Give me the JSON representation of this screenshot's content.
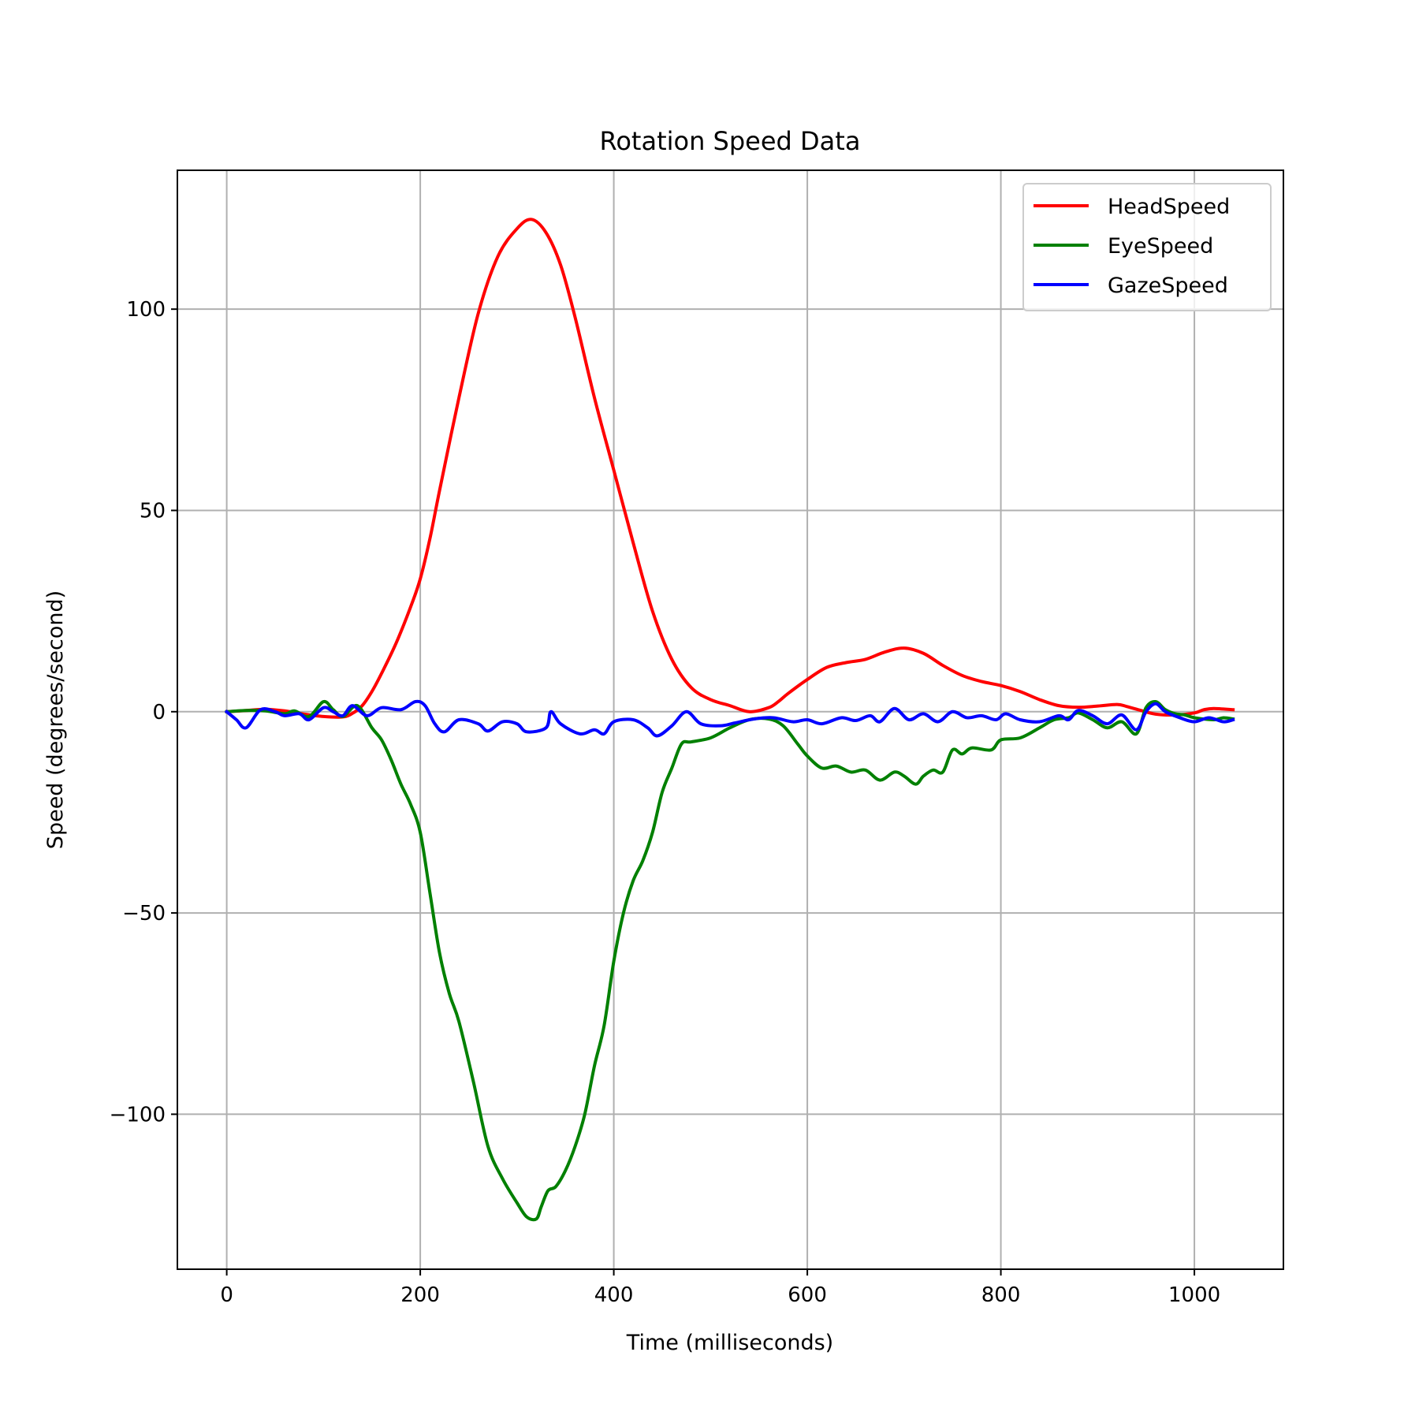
{
  "chart_data": {
    "type": "line",
    "title": "Rotation Speed Data",
    "xlabel": "Time (milliseconds)",
    "ylabel": "Speed (degrees/second)",
    "xlim": [
      -51,
      1092
    ],
    "ylim": [
      -138.5,
      134.5
    ],
    "xticks": [
      0,
      200,
      400,
      600,
      800,
      1000
    ],
    "yticks": [
      -100,
      -50,
      0,
      50,
      100
    ],
    "xtick_labels": [
      "0",
      "200",
      "400",
      "600",
      "800",
      "1000"
    ],
    "ytick_labels": [
      "−100",
      "−50",
      "0",
      "50",
      "100"
    ],
    "grid": true,
    "legend_position": "top-right",
    "series": [
      {
        "name": "HeadSpeed",
        "color": "#ff0000",
        "points": [
          [
            0,
            0
          ],
          [
            20,
            0.3
          ],
          [
            40,
            0.6
          ],
          [
            60,
            0.2
          ],
          [
            80,
            -0.6
          ],
          [
            100,
            -1.2
          ],
          [
            120,
            -1.3
          ],
          [
            130,
            -0.4
          ],
          [
            140,
            1.5
          ],
          [
            150,
            5
          ],
          [
            160,
            9.5
          ],
          [
            175,
            17
          ],
          [
            190,
            26
          ],
          [
            200,
            33
          ],
          [
            210,
            43
          ],
          [
            220,
            55
          ],
          [
            240,
            78
          ],
          [
            260,
            99
          ],
          [
            280,
            113
          ],
          [
            300,
            120
          ],
          [
            315,
            122.3
          ],
          [
            330,
            119
          ],
          [
            345,
            111
          ],
          [
            360,
            98
          ],
          [
            380,
            78
          ],
          [
            400,
            60
          ],
          [
            420,
            42
          ],
          [
            440,
            25
          ],
          [
            460,
            13
          ],
          [
            480,
            6
          ],
          [
            500,
            3
          ],
          [
            520,
            1.5
          ],
          [
            540,
            0
          ],
          [
            560,
            1
          ],
          [
            570,
            2.5
          ],
          [
            580,
            4.5
          ],
          [
            600,
            8
          ],
          [
            620,
            11
          ],
          [
            640,
            12.2
          ],
          [
            660,
            13
          ],
          [
            680,
            14.8
          ],
          [
            700,
            15.8
          ],
          [
            720,
            14.5
          ],
          [
            740,
            11.5
          ],
          [
            760,
            9
          ],
          [
            780,
            7.5
          ],
          [
            800,
            6.5
          ],
          [
            820,
            5
          ],
          [
            840,
            3
          ],
          [
            860,
            1.5
          ],
          [
            880,
            1.1
          ],
          [
            900,
            1.4
          ],
          [
            920,
            1.8
          ],
          [
            930,
            1.3
          ],
          [
            945,
            0.3
          ],
          [
            960,
            -0.6
          ],
          [
            980,
            -0.8
          ],
          [
            1000,
            -0.3
          ],
          [
            1010,
            0.5
          ],
          [
            1020,
            0.8
          ],
          [
            1040,
            0.5
          ]
        ]
      },
      {
        "name": "EyeSpeed",
        "color": "#008000",
        "points": [
          [
            0,
            0
          ],
          [
            20,
            0.3
          ],
          [
            40,
            0.2
          ],
          [
            60,
            -0.5
          ],
          [
            70,
            0.2
          ],
          [
            85,
            -1.2
          ],
          [
            100,
            2.5
          ],
          [
            110,
            0.5
          ],
          [
            120,
            -1.2
          ],
          [
            135,
            1.5
          ],
          [
            150,
            -4
          ],
          [
            160,
            -7
          ],
          [
            170,
            -12
          ],
          [
            180,
            -18
          ],
          [
            190,
            -23
          ],
          [
            200,
            -30
          ],
          [
            210,
            -45
          ],
          [
            220,
            -60
          ],
          [
            230,
            -70
          ],
          [
            240,
            -77
          ],
          [
            255,
            -92
          ],
          [
            270,
            -108
          ],
          [
            285,
            -116
          ],
          [
            300,
            -122
          ],
          [
            310,
            -125.5
          ],
          [
            320,
            -126
          ],
          [
            325,
            -123
          ],
          [
            332,
            -119
          ],
          [
            340,
            -118
          ],
          [
            350,
            -114
          ],
          [
            360,
            -108
          ],
          [
            370,
            -100
          ],
          [
            380,
            -88
          ],
          [
            390,
            -78
          ],
          [
            400,
            -62
          ],
          [
            410,
            -50
          ],
          [
            420,
            -42
          ],
          [
            430,
            -37
          ],
          [
            440,
            -30
          ],
          [
            450,
            -20
          ],
          [
            460,
            -14
          ],
          [
            470,
            -8
          ],
          [
            480,
            -7.5
          ],
          [
            500,
            -6.5
          ],
          [
            520,
            -4
          ],
          [
            540,
            -2
          ],
          [
            560,
            -1.8
          ],
          [
            575,
            -3.5
          ],
          [
            590,
            -8
          ],
          [
            600,
            -11
          ],
          [
            615,
            -14
          ],
          [
            630,
            -13.5
          ],
          [
            645,
            -15
          ],
          [
            660,
            -14.5
          ],
          [
            675,
            -17
          ],
          [
            690,
            -15
          ],
          [
            700,
            -16
          ],
          [
            712,
            -18
          ],
          [
            720,
            -16
          ],
          [
            730,
            -14.5
          ],
          [
            740,
            -15
          ],
          [
            750,
            -9.5
          ],
          [
            760,
            -10.5
          ],
          [
            770,
            -9
          ],
          [
            790,
            -9.5
          ],
          [
            800,
            -7
          ],
          [
            820,
            -6.5
          ],
          [
            840,
            -4
          ],
          [
            855,
            -2
          ],
          [
            870,
            -1.5
          ],
          [
            880,
            -0.3
          ],
          [
            895,
            -2
          ],
          [
            910,
            -4
          ],
          [
            925,
            -2.5
          ],
          [
            940,
            -5.5
          ],
          [
            950,
            1
          ],
          [
            960,
            2.5
          ],
          [
            970,
            0.5
          ],
          [
            980,
            -0.5
          ],
          [
            990,
            -0.8
          ],
          [
            1000,
            -1.5
          ],
          [
            1020,
            -2
          ],
          [
            1030,
            -1.5
          ],
          [
            1040,
            -1.8
          ]
        ]
      },
      {
        "name": "GazeSpeed",
        "color": "#0000ff",
        "points": [
          [
            0,
            0
          ],
          [
            10,
            -2
          ],
          [
            20,
            -4
          ],
          [
            35,
            0.5
          ],
          [
            50,
            0
          ],
          [
            60,
            -1
          ],
          [
            75,
            -0.5
          ],
          [
            85,
            -2
          ],
          [
            100,
            1
          ],
          [
            110,
            0
          ],
          [
            120,
            -1
          ],
          [
            130,
            1.5
          ],
          [
            145,
            -1
          ],
          [
            160,
            1
          ],
          [
            180,
            0.5
          ],
          [
            195,
            2.5
          ],
          [
            205,
            1.5
          ],
          [
            215,
            -3
          ],
          [
            225,
            -5
          ],
          [
            240,
            -2
          ],
          [
            260,
            -3
          ],
          [
            270,
            -4.8
          ],
          [
            285,
            -2.5
          ],
          [
            300,
            -3
          ],
          [
            310,
            -5
          ],
          [
            330,
            -4
          ],
          [
            335,
            0
          ],
          [
            345,
            -3
          ],
          [
            365,
            -5.5
          ],
          [
            380,
            -4.5
          ],
          [
            390,
            -5.5
          ],
          [
            400,
            -2.5
          ],
          [
            420,
            -2
          ],
          [
            435,
            -4
          ],
          [
            445,
            -6
          ],
          [
            460,
            -3.5
          ],
          [
            475,
            0
          ],
          [
            490,
            -3
          ],
          [
            510,
            -3.5
          ],
          [
            525,
            -2.8
          ],
          [
            545,
            -1.8
          ],
          [
            565,
            -1.5
          ],
          [
            585,
            -2.5
          ],
          [
            600,
            -2
          ],
          [
            615,
            -3
          ],
          [
            635,
            -1.5
          ],
          [
            650,
            -2.2
          ],
          [
            665,
            -1
          ],
          [
            675,
            -2.5
          ],
          [
            690,
            0.8
          ],
          [
            705,
            -2
          ],
          [
            720,
            -0.5
          ],
          [
            735,
            -2.5
          ],
          [
            750,
            0
          ],
          [
            765,
            -1.5
          ],
          [
            780,
            -1
          ],
          [
            795,
            -2
          ],
          [
            805,
            -0.5
          ],
          [
            820,
            -2
          ],
          [
            840,
            -2.5
          ],
          [
            860,
            -1
          ],
          [
            870,
            -2
          ],
          [
            880,
            0.3
          ],
          [
            895,
            -1
          ],
          [
            910,
            -3
          ],
          [
            925,
            -0.8
          ],
          [
            940,
            -4.5
          ],
          [
            950,
            0
          ],
          [
            960,
            2
          ],
          [
            970,
            0
          ],
          [
            985,
            -1.5
          ],
          [
            1000,
            -2.5
          ],
          [
            1015,
            -1.5
          ],
          [
            1030,
            -2.5
          ],
          [
            1040,
            -2
          ]
        ]
      }
    ]
  }
}
